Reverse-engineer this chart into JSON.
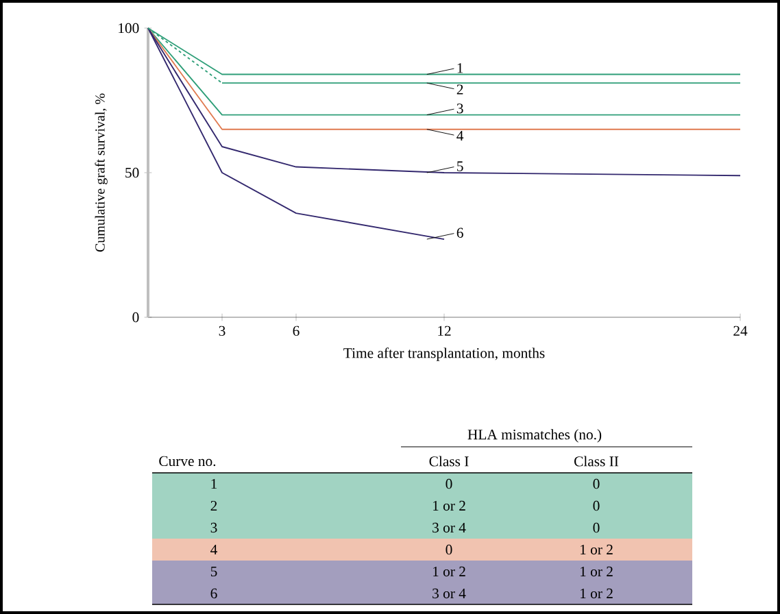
{
  "chart_data": {
    "type": "line",
    "xlabel": "Time after transplantation, months",
    "ylabel": "Cumulative graft survival, %",
    "xlim": [
      0,
      24
    ],
    "ylim": [
      0,
      100
    ],
    "xticks": [
      3,
      6,
      12,
      24
    ],
    "yticks": [
      0,
      50,
      100
    ],
    "grid": false,
    "marker": "none",
    "series": [
      {
        "name": "1",
        "color": "#2e9e78",
        "x": [
          0,
          3,
          24
        ],
        "values": [
          100,
          84,
          84
        ]
      },
      {
        "name": "2",
        "color": "#2e9e78",
        "x": [
          3,
          24
        ],
        "values": [
          81,
          81
        ]
      },
      {
        "name": "3",
        "color": "#2e9e78",
        "x": [
          0,
          3,
          24
        ],
        "values": [
          100,
          70,
          70
        ]
      },
      {
        "name": "4",
        "color": "#e07a50",
        "x": [
          0,
          3,
          24
        ],
        "values": [
          100,
          65,
          65
        ]
      },
      {
        "name": "5",
        "color": "#33286e",
        "x": [
          0,
          3,
          6,
          12,
          24
        ],
        "values": [
          100,
          59,
          52,
          50,
          49
        ]
      },
      {
        "name": "6",
        "color": "#33286e",
        "x": [
          0,
          3,
          6,
          12
        ],
        "values": [
          100,
          50,
          36,
          27
        ]
      },
      {
        "color": "#2e9e78",
        "x": [
          0,
          3
        ],
        "values": [
          100,
          81
        ],
        "line_style": "dashed"
      }
    ],
    "annotations": [
      "HLA mismatches (no.)",
      "Curve no.",
      "Class I",
      "Class II",
      "1",
      "0",
      "0",
      "2",
      "1 or 2",
      "0",
      "3",
      "3 or 4",
      "0",
      "4",
      "0",
      "1 or 2",
      "5",
      "1 or 2",
      "1 or 2",
      "6",
      "3 or 4",
      "1 or 2"
    ]
  }
}
